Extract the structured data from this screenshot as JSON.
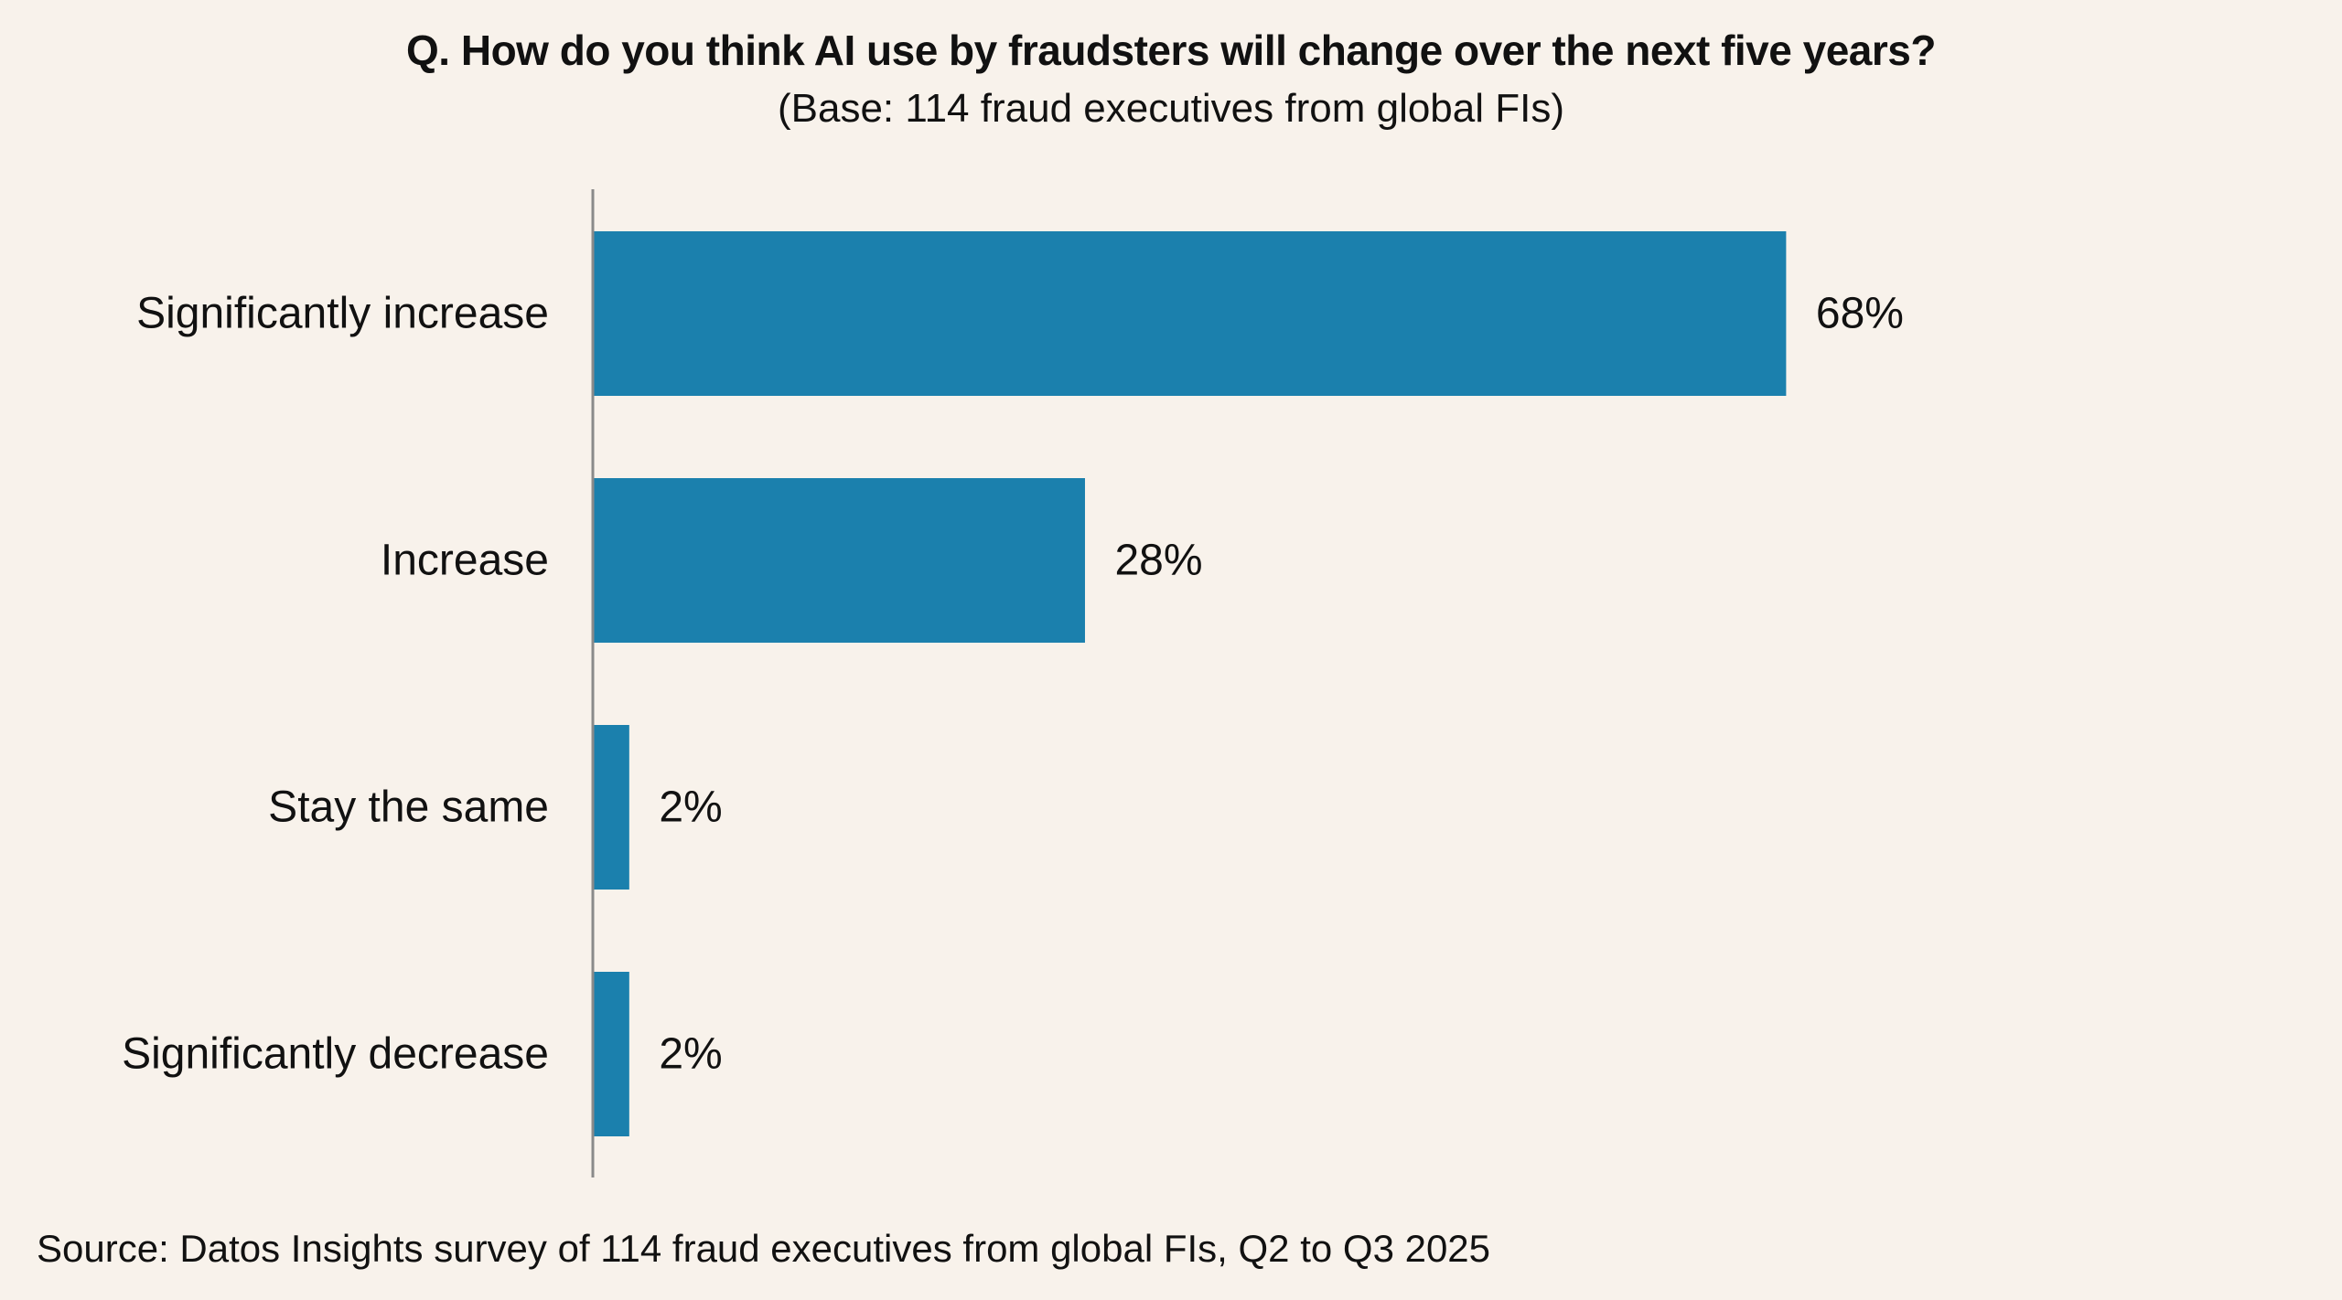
{
  "chart_data": {
    "type": "bar",
    "orientation": "horizontal",
    "title": "Q. How do you think AI use by fraudsters will change over the next five years?",
    "subtitle": "(Base: 114 fraud executives from global FIs)",
    "categories": [
      "Significantly increase",
      "Increase",
      "Stay the same",
      "Significantly decrease"
    ],
    "values": [
      68,
      28,
      2,
      2
    ],
    "value_labels": [
      "68%",
      "28%",
      "2%",
      "2%"
    ],
    "unit": "%",
    "xlabel": "",
    "ylabel": "",
    "xlim": [
      0,
      100
    ],
    "grid": false,
    "legend": "none",
    "bar_color": "#1b80ad",
    "axis_color": "#8a8a8a",
    "background": "#f8f2eb"
  },
  "source": "Source: Datos Insights survey of 114 fraud executives from global FIs, Q2 to Q3 2025"
}
